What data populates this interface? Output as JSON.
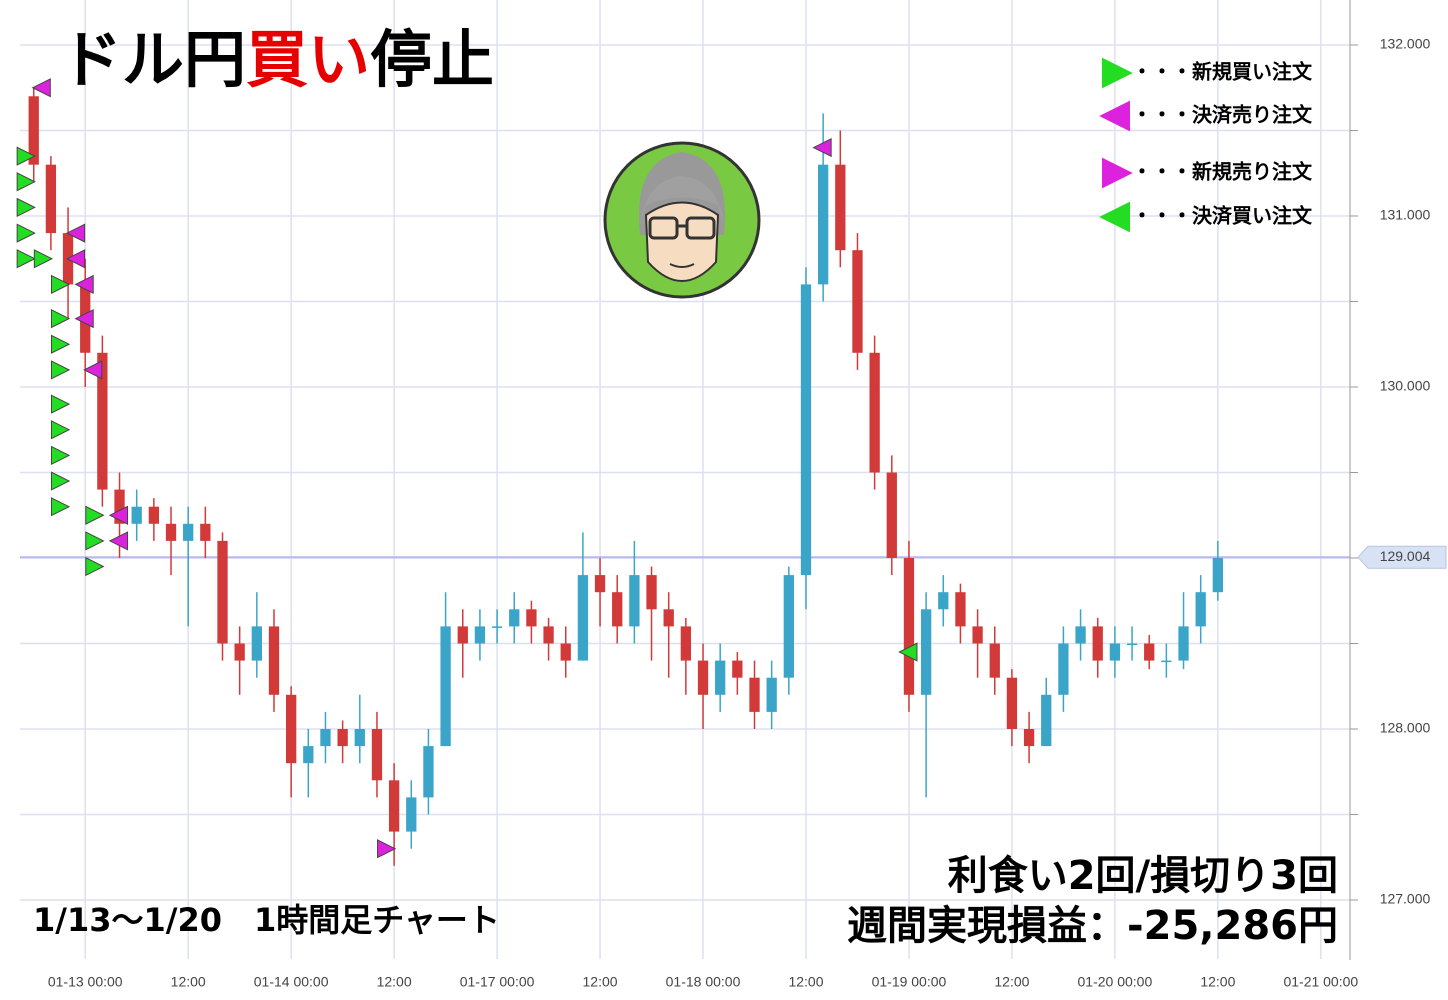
{
  "chart_data": {
    "type": "candlestick",
    "title_parts": [
      "ドル円",
      "買い",
      "停止"
    ],
    "title_colors": [
      "#000000",
      "#e60000",
      "#000000"
    ],
    "subtitle": "1/13～1/20　1時間足チャート",
    "annotations": [
      "利食い2回/損切り3回",
      "週間実現損益：-25,286円"
    ],
    "up_color": "#3aa5c8",
    "down_color": "#d23a3a",
    "xlim": [
      -7.6,
      147.4
    ],
    "xticks": [
      {
        "value": 0,
        "label": "01-13 00:00"
      },
      {
        "value": 12,
        "label": "12:00"
      },
      {
        "value": 24,
        "label": "01-14 00:00"
      },
      {
        "value": 36,
        "label": "12:00"
      },
      {
        "value": 48,
        "label": "01-17 00:00"
      },
      {
        "value": 60,
        "label": "12:00"
      },
      {
        "value": 72,
        "label": "01-18 00:00"
      },
      {
        "value": 84,
        "label": "12:00"
      },
      {
        "value": 96,
        "label": "01-19 00:00"
      },
      {
        "value": 108,
        "label": "12:00"
      },
      {
        "value": 120,
        "label": "01-20 00:00"
      },
      {
        "value": 132,
        "label": "12:00"
      },
      {
        "value": 144,
        "label": "01-21 00:00"
      }
    ],
    "ylim": [
      126.655,
      132.263
    ],
    "yticks": [
      {
        "value": 132,
        "label": "132.000"
      },
      {
        "value": 131,
        "label": "131.000"
      },
      {
        "value": 130,
        "label": "130.000"
      },
      {
        "value": 128,
        "label": "128.000"
      },
      {
        "value": 127,
        "label": "127.000"
      }
    ],
    "minor_yticks": [
      131.5,
      130.5,
      129.5,
      129,
      128.5,
      127.5
    ],
    "grid": true,
    "current_price": {
      "value": 129.004,
      "label": "129.004"
    },
    "x": [
      -6,
      -4,
      -2,
      0,
      2,
      4,
      6,
      8,
      10,
      12,
      14,
      16,
      18,
      20,
      22,
      24,
      26,
      28,
      30,
      32,
      34,
      36,
      38,
      40,
      42,
      44,
      46,
      48,
      50,
      52,
      54,
      56,
      58,
      60,
      62,
      64,
      66,
      68,
      70,
      72,
      74,
      76,
      78,
      80,
      82,
      84,
      86,
      88,
      90,
      92,
      94,
      96,
      98,
      100,
      102,
      104,
      106,
      108,
      110,
      112,
      114,
      116,
      118,
      120,
      122,
      124,
      126,
      128,
      130,
      132
    ],
    "open": [
      131.7,
      131.3,
      130.9,
      130.6,
      130.2,
      129.4,
      129.2,
      129.3,
      129.2,
      129.1,
      129.2,
      129.1,
      128.5,
      128.4,
      128.6,
      128.2,
      127.8,
      127.9,
      128.0,
      127.9,
      128.0,
      127.7,
      127.4,
      127.6,
      127.9,
      128.6,
      128.5,
      128.6,
      128.6,
      128.7,
      128.6,
      128.5,
      128.4,
      128.9,
      128.8,
      128.6,
      128.9,
      128.7,
      128.6,
      128.4,
      128.2,
      128.4,
      128.3,
      128.1,
      128.3,
      128.9,
      130.6,
      131.3,
      130.8,
      130.2,
      129.5,
      129.0,
      128.2,
      128.7,
      128.8,
      128.6,
      128.5,
      128.3,
      128.0,
      127.9,
      128.2,
      128.5,
      128.6,
      128.4,
      128.5,
      128.5,
      128.4,
      128.4,
      128.6,
      128.8
    ],
    "high": [
      131.75,
      131.35,
      131.05,
      130.75,
      130.3,
      129.5,
      129.4,
      129.35,
      129.3,
      129.3,
      129.3,
      129.15,
      128.6,
      128.8,
      128.7,
      128.25,
      128.0,
      128.1,
      128.05,
      128.2,
      128.1,
      127.8,
      127.7,
      128.0,
      128.8,
      128.7,
      128.7,
      128.7,
      128.8,
      128.75,
      128.65,
      128.6,
      129.15,
      129.0,
      128.9,
      129.1,
      128.95,
      128.8,
      128.65,
      128.5,
      128.5,
      128.45,
      128.4,
      128.4,
      128.95,
      130.7,
      131.6,
      131.5,
      130.9,
      130.3,
      129.6,
      129.1,
      128.8,
      128.9,
      128.85,
      128.7,
      128.6,
      128.35,
      128.1,
      128.3,
      128.6,
      128.7,
      128.65,
      128.6,
      128.6,
      128.55,
      128.5,
      128.8,
      128.9,
      129.1
    ],
    "low": [
      131.2,
      130.8,
      130.4,
      130.0,
      129.3,
      129.0,
      129.1,
      129.1,
      128.9,
      128.6,
      129.0,
      128.4,
      128.2,
      128.3,
      128.1,
      127.6,
      127.6,
      127.8,
      127.8,
      127.8,
      127.6,
      127.2,
      127.3,
      127.5,
      127.9,
      128.3,
      128.4,
      128.5,
      128.5,
      128.5,
      128.4,
      128.3,
      128.4,
      128.6,
      128.5,
      128.5,
      128.4,
      128.3,
      128.2,
      128.0,
      128.1,
      128.2,
      128.0,
      128.0,
      128.2,
      128.7,
      130.5,
      130.7,
      130.1,
      129.4,
      128.9,
      128.1,
      127.6,
      128.6,
      128.5,
      128.3,
      128.2,
      127.9,
      127.8,
      127.9,
      128.1,
      128.4,
      128.3,
      128.3,
      128.4,
      128.35,
      128.3,
      128.35,
      128.5,
      128.75
    ],
    "close": [
      131.3,
      130.9,
      130.6,
      130.2,
      129.4,
      129.2,
      129.3,
      129.2,
      129.1,
      129.2,
      129.1,
      128.5,
      128.4,
      128.6,
      128.2,
      127.8,
      127.9,
      128.0,
      127.9,
      128.0,
      127.7,
      127.4,
      127.6,
      127.9,
      128.6,
      128.5,
      128.6,
      128.6,
      128.7,
      128.6,
      128.5,
      128.4,
      128.9,
      128.8,
      128.6,
      128.9,
      128.7,
      128.6,
      128.4,
      128.2,
      128.4,
      128.3,
      128.1,
      128.3,
      128.9,
      130.6,
      131.3,
      130.8,
      130.2,
      129.5,
      129.0,
      128.2,
      128.7,
      128.8,
      128.6,
      128.5,
      128.3,
      128.0,
      127.9,
      128.2,
      128.5,
      128.6,
      128.4,
      128.5,
      128.5,
      128.4,
      128.4,
      128.6,
      128.8,
      129.0
    ],
    "markers": [
      {
        "name": "・・・新規買い注文",
        "color": "#22dd22",
        "direction": "right",
        "x": [
          -7,
          -7,
          -7,
          -7,
          -7,
          -5,
          -3,
          -3,
          -3,
          -3,
          -3,
          -3,
          -3,
          -3,
          -3,
          1,
          1,
          1
        ],
        "y": [
          131.35,
          131.2,
          131.05,
          130.9,
          130.75,
          130.75,
          130.6,
          130.4,
          130.25,
          130.1,
          129.9,
          129.75,
          129.6,
          129.45,
          129.3,
          129.25,
          129.1,
          128.95
        ]
      },
      {
        "name": "・・・決済売り注文",
        "color": "#dd22dd",
        "direction": "left",
        "x": [
          -5,
          -1,
          -1,
          0,
          0,
          1,
          4,
          4,
          86
        ],
        "y": [
          131.75,
          130.9,
          130.75,
          130.6,
          130.4,
          130.1,
          129.25,
          129.1,
          131.4
        ]
      },
      {
        "name": "・・・新規売り注文",
        "color": "#dd22dd",
        "direction": "right",
        "x": [
          35
        ],
        "y": [
          127.3
        ]
      },
      {
        "name": "・・・決済買い注文",
        "color": "#22dd22",
        "direction": "left",
        "x": [
          96
        ],
        "y": [
          128.45
        ]
      }
    ]
  }
}
